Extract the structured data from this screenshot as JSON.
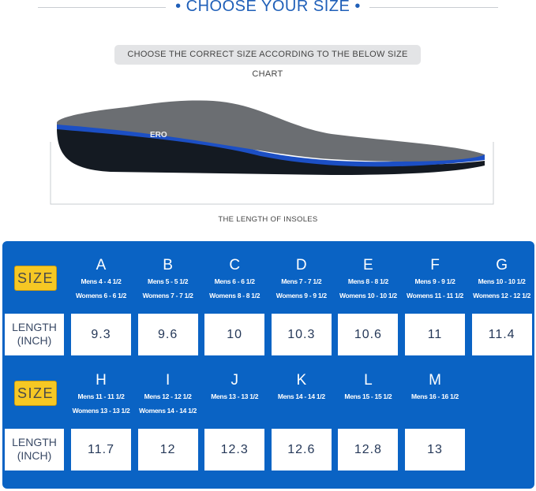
{
  "header": {
    "title": "• CHOOSE YOUR SIZE •",
    "subtitle": "CHOOSE THE CORRECT SIZE ACCORDING TO THE BELOW SIZE CHART"
  },
  "image": {
    "brand_partial": "ERO",
    "caption": "THE LENGTH OF INSOLES"
  },
  "colors": {
    "panel": "#0a63c4",
    "badge": "#f6c824",
    "title": "#1f5fb8"
  },
  "table": {
    "size_label": "SIZE",
    "length_label_line1": "LENGTH",
    "length_label_line2": "(INCH)",
    "row1": [
      {
        "size": "A",
        "mens": "Mens 4 - 4 1/2",
        "womens": "Womens 6 - 6 1/2",
        "length": "9.3"
      },
      {
        "size": "B",
        "mens": "Mens 5 - 5 1/2",
        "womens": "Womens 7 - 7 1/2",
        "length": "9.6"
      },
      {
        "size": "C",
        "mens": "Mens 6 - 6 1/2",
        "womens": "Womens 8 - 8 1/2",
        "length": "10"
      },
      {
        "size": "D",
        "mens": "Mens 7 - 7 1/2",
        "womens": "Womens 9 - 9 1/2",
        "length": "10.3"
      },
      {
        "size": "E",
        "mens": "Mens 8 - 8 1/2",
        "womens": "Womens 10 - 10 1/2",
        "length": "10.6"
      },
      {
        "size": "F",
        "mens": "Mens 9 - 9 1/2",
        "womens": "Womens 11 - 11 1/2",
        "length": "11"
      },
      {
        "size": "G",
        "mens": "Mens 10 - 10 1/2",
        "womens": "Womens 12 - 12 1/2",
        "length": "11.4"
      }
    ],
    "row2": [
      {
        "size": "H",
        "mens": "Mens 11 - 11 1/2",
        "womens": "Womens 13 - 13 1/2",
        "length": "11.7"
      },
      {
        "size": "I",
        "mens": "Mens 12 - 12 1/2",
        "womens": "Womens 14 - 14 1/2",
        "length": "12"
      },
      {
        "size": "J",
        "mens": "Mens 13 - 13 1/2",
        "womens": "",
        "length": "12.3"
      },
      {
        "size": "K",
        "mens": "Mens 14 - 14 1/2",
        "womens": "",
        "length": "12.6"
      },
      {
        "size": "L",
        "mens": "Mens 15 - 15 1/2",
        "womens": "",
        "length": "12.8"
      },
      {
        "size": "M",
        "mens": "Mens 16 - 16 1/2",
        "womens": "",
        "length": "13"
      }
    ]
  }
}
